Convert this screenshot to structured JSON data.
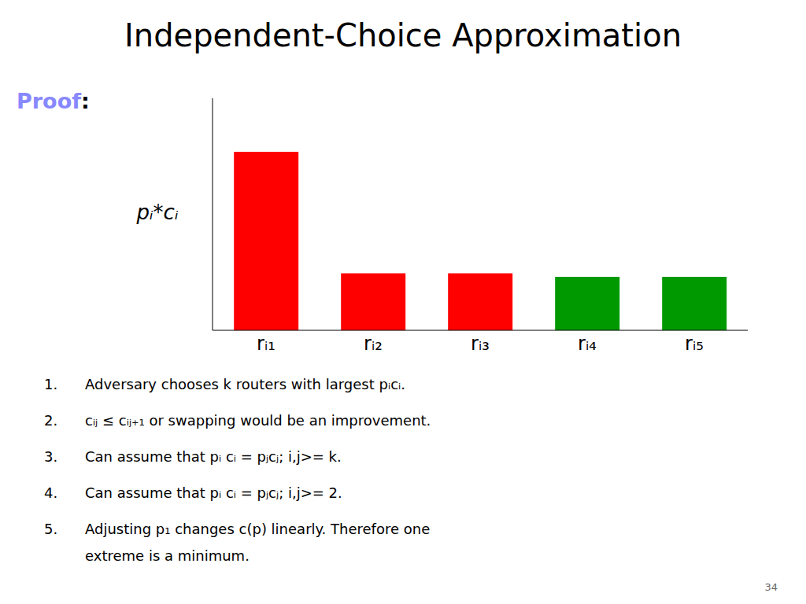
{
  "chart_data": {
    "type": "bar",
    "title": "Independent-Choice Approximation",
    "ylabel": "pᵢ*cᵢ",
    "categories": [
      "rᵢ₁",
      "rᵢ₂",
      "rᵢ₃",
      "rᵢ₄",
      "rᵢ₅"
    ],
    "values": [
      1.0,
      0.32,
      0.32,
      0.3,
      0.3
    ],
    "colors": [
      "#FF0000",
      "#FF0000",
      "#FF0000",
      "#009900",
      "#009900"
    ],
    "ylim": [
      0,
      1.3
    ],
    "tick_labels": "x",
    "annotations": [
      {
        "text": "Proof",
        "color": "#8888FF"
      },
      {
        "text": ":"
      },
      {
        "text": "1. Adversary chooses k routers with largest pᵢcᵢ."
      },
      {
        "text": "2. cᵢⱼ ≤ cᵢⱼ₊₁ or swapping would be an improvement."
      },
      {
        "text": "3. Can assume that pᵢ cᵢ = pⱼcⱼ; i,j>= k."
      },
      {
        "text": "4. Can assume that pᵢ cᵢ = pⱼcⱼ; i,j>= 2."
      },
      {
        "text": "5. Adjusting p₁ changes c(p) linearly.  Therefore one"
      },
      {
        "text": "extreme is a minimum."
      },
      {
        "text": "34"
      }
    ]
  }
}
